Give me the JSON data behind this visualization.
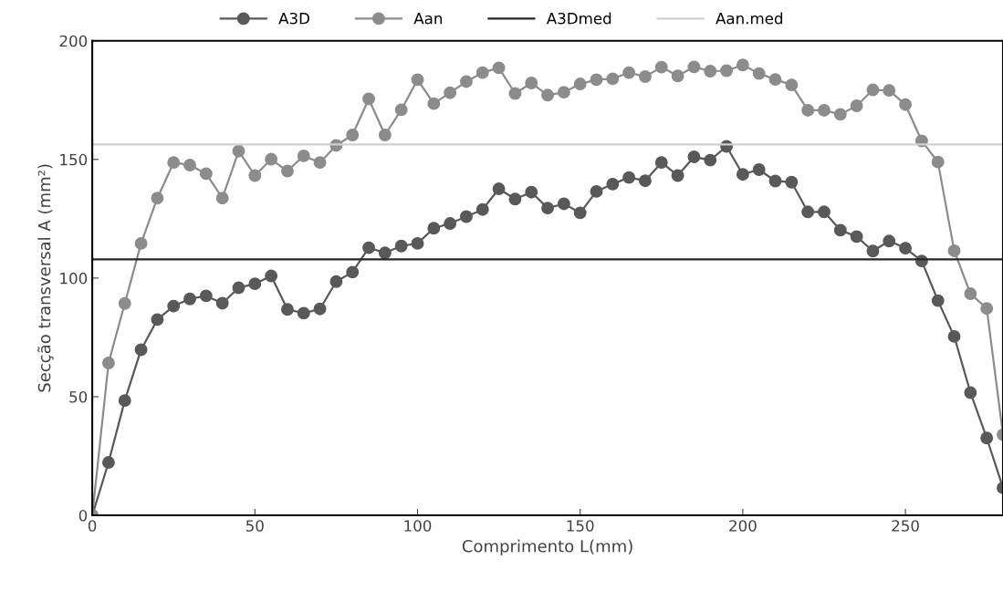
{
  "chart_data": {
    "type": "line",
    "xlabel": "Comprimento L(mm)",
    "ylabel": "Secção transversal A (mm²)",
    "xlim": [
      0,
      280
    ],
    "ylim": [
      0,
      200
    ],
    "xticks": [
      0,
      50,
      100,
      150,
      200,
      250
    ],
    "yticks": [
      0,
      50,
      100,
      150,
      200
    ],
    "grid": false,
    "legend": "top",
    "marker": "circle",
    "x": [
      0,
      5,
      10,
      15,
      20,
      25,
      30,
      35,
      40,
      45,
      50,
      55,
      60,
      65,
      70,
      75,
      80,
      85,
      90,
      95,
      100,
      105,
      110,
      115,
      120,
      125,
      130,
      135,
      140,
      145,
      150,
      155,
      160,
      165,
      170,
      175,
      180,
      185,
      190,
      195,
      200,
      205,
      210,
      215,
      220,
      225,
      230,
      235,
      240,
      245,
      250,
      255,
      260,
      265,
      270,
      275,
      280
    ],
    "series": [
      {
        "name": "A3D",
        "color": "#595959",
        "values": [
          0,
          22.3,
          48.4,
          69.8,
          82.5,
          88.2,
          91.2,
          92.5,
          89.4,
          95.9,
          97.6,
          100.9,
          86.8,
          85.2,
          87.0,
          98.5,
          102.5,
          112.8,
          110.6,
          113.5,
          114.6,
          121.0,
          123.0,
          125.9,
          128.9,
          137.6,
          133.3,
          136.2,
          129.5,
          131.3,
          127.5,
          136.5,
          139.6,
          142.4,
          141.0,
          148.7,
          143.2,
          151.1,
          149.7,
          155.5,
          143.7,
          145.7,
          140.9,
          140.4,
          127.9,
          127.9,
          120.2,
          117.5,
          111.4,
          115.6,
          112.6,
          107.2,
          90.5,
          75.4,
          51.7,
          32.6,
          11.6
        ]
      },
      {
        "name": "Aan",
        "color": "#8c8c8c",
        "values": [
          0,
          64.2,
          89.3,
          114.6,
          133.7,
          148.7,
          147.6,
          144.0,
          133.7,
          153.5,
          143.2,
          150.1,
          145.1,
          151.5,
          148.7,
          155.9,
          160.3,
          175.5,
          160.3,
          170.9,
          183.6,
          173.5,
          178.1,
          182.8,
          186.6,
          188.6,
          177.8,
          182.2,
          177.1,
          178.3,
          181.8,
          183.6,
          184.0,
          186.6,
          184.9,
          188.9,
          185.2,
          189.0,
          187.2,
          187.4,
          189.8,
          186.2,
          183.7,
          181.4,
          170.7,
          170.7,
          169.0,
          172.6,
          179.3,
          179.1,
          173.1,
          157.8,
          148.9,
          111.5,
          93.4,
          87.2,
          34
        ]
      }
    ],
    "ref_lines": [
      {
        "axis": "y",
        "value": 107.9,
        "label": "A3Dmed",
        "color": "#262626",
        "line_style": "solid"
      },
      {
        "axis": "y",
        "value": 156.3,
        "label": "Aan.med",
        "color": "#d0d0d0",
        "line_style": "solid"
      }
    ]
  }
}
